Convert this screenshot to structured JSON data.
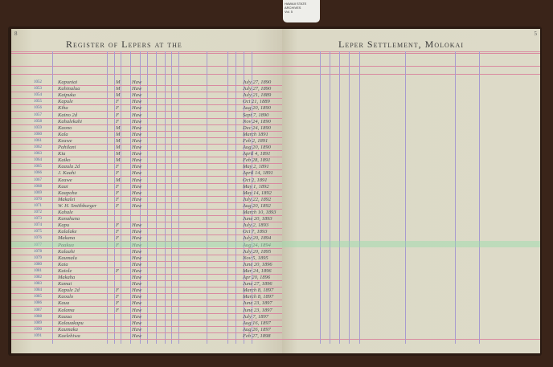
{
  "tag": {
    "lines": [
      "HAWAII STATE",
      "ARCHIVES",
      "Vol. 5"
    ]
  },
  "left_page": {
    "page_number": "8",
    "title": "Register of Lepers at the"
  },
  "right_page": {
    "page_number": "5",
    "title": "Leper Settlement, Molokai"
  },
  "colors": {
    "page": "#dcd9c6",
    "ruling_pink": "#d98aa0",
    "ruling_purple": "#a79bd0",
    "highlight": "#96dcaa"
  },
  "highlighted_row": 25,
  "rows": [
    {
      "num": "1052",
      "name": "Kapuniai",
      "sex": "M",
      "nat": "Haw",
      "date": "July 27, 1890"
    },
    {
      "num": "1053",
      "name": "Kahinalua",
      "sex": "M",
      "nat": "Haw",
      "date": "July 27, 1890"
    },
    {
      "num": "1054",
      "name": "Kaipuka",
      "sex": "M",
      "nat": "Haw",
      "date": "July 21, 1889"
    },
    {
      "num": "1055",
      "name": "Kapule",
      "sex": "F",
      "nat": "Haw",
      "date": "Oct 21, 1889"
    },
    {
      "num": "1056",
      "name": "Kiha",
      "sex": "F",
      "nat": "Haw",
      "date": "Aug 20, 1890"
    },
    {
      "num": "1057",
      "name": "Kaino 2d",
      "sex": "F",
      "nat": "Haw",
      "date": "Sept 7, 1890"
    },
    {
      "num": "1058",
      "name": "Kahalekahi",
      "sex": "F",
      "nat": "Haw",
      "date": "Nov 24, 1890"
    },
    {
      "num": "1059",
      "name": "Kaono",
      "sex": "M",
      "nat": "Haw",
      "date": "Dec 24, 1890"
    },
    {
      "num": "1060",
      "name": "Kala",
      "sex": "M",
      "nat": "Haw",
      "date": "March 1891"
    },
    {
      "num": "1061",
      "name": "Keawe",
      "sex": "M",
      "nat": "Haw",
      "date": "Feb 2, 1891"
    },
    {
      "num": "1062",
      "name": "Pahilani",
      "sex": "M",
      "nat": "Haw",
      "date": "Aug 20, 1890"
    },
    {
      "num": "1063",
      "name": "Kia",
      "sex": "M",
      "nat": "Haw",
      "date": "April 4, 1891"
    },
    {
      "num": "1064",
      "name": "Kaiko",
      "sex": "M",
      "nat": "Haw",
      "date": "Feb 28, 1891"
    },
    {
      "num": "1065",
      "name": "Kaaula 2d",
      "sex": "F",
      "nat": "Haw",
      "date": "May 2, 1891"
    },
    {
      "num": "1066",
      "name": "J. Kaahi",
      "sex": "F",
      "nat": "Haw",
      "date": "April 14, 1891"
    },
    {
      "num": "1067",
      "name": "Keawe",
      "sex": "M",
      "nat": "Haw",
      "date": "Oct 2, 1891"
    },
    {
      "num": "1068",
      "name": "Kaai",
      "sex": "F",
      "nat": "Haw",
      "date": "May 1, 1892"
    },
    {
      "num": "1069",
      "name": "Kaapoha",
      "sex": "F",
      "nat": "Haw",
      "date": "May 14, 1892"
    },
    {
      "num": "1070",
      "name": "Makalei",
      "sex": "F",
      "nat": "Haw",
      "date": "July 22, 1892"
    },
    {
      "num": "1071",
      "name": "W. H. Smithburger",
      "sex": "F",
      "nat": "Haw",
      "date": "Aug 20, 1892"
    },
    {
      "num": "1072",
      "name": "Kahale",
      "sex": "",
      "nat": "",
      "date": "March 10, 1893"
    },
    {
      "num": "1073",
      "name": "Kanahuna",
      "sex": "",
      "nat": "",
      "date": "June 20, 1893"
    },
    {
      "num": "1074",
      "name": "Kapu",
      "sex": "F",
      "nat": "Haw",
      "date": "July 2, 1893"
    },
    {
      "num": "1075",
      "name": "Kalalake",
      "sex": "F",
      "nat": "Haw",
      "date": "Oct 7, 1893"
    },
    {
      "num": "1076",
      "name": "Makana",
      "sex": "F",
      "nat": "Haw",
      "date": "July 20, 1894"
    },
    {
      "num": "1077",
      "name": "Paakua",
      "sex": "F",
      "nat": "Haw",
      "date": "Aug 24, 1894"
    },
    {
      "num": "1078",
      "name": "Kalaahi",
      "sex": "",
      "nat": "Haw",
      "date": "July 20, 1895"
    },
    {
      "num": "1079",
      "name": "Kaumalu",
      "sex": "",
      "nat": "Haw",
      "date": "Nov 5, 1895"
    },
    {
      "num": "1080",
      "name": "Kaia",
      "sex": "",
      "nat": "Haw",
      "date": "June 20, 1896"
    },
    {
      "num": "1081",
      "name": "Kaiole",
      "sex": "F",
      "nat": "Haw",
      "date": "Mar 24, 1896"
    },
    {
      "num": "1082",
      "name": "Makaha",
      "sex": "",
      "nat": "Haw",
      "date": "Apr 20, 1896"
    },
    {
      "num": "1083",
      "name": "Kamai",
      "sex": "",
      "nat": "Haw",
      "date": "June 27, 1896"
    },
    {
      "num": "1084",
      "name": "Kapule 2d",
      "sex": "F",
      "nat": "Haw",
      "date": "March 8, 1897"
    },
    {
      "num": "1085",
      "name": "Kaoulo",
      "sex": "F",
      "nat": "Haw",
      "date": "March 8, 1897"
    },
    {
      "num": "1086",
      "name": "Kaua",
      "sex": "F",
      "nat": "Haw",
      "date": "June 23, 1897"
    },
    {
      "num": "1087",
      "name": "Kalama",
      "sex": "F",
      "nat": "Haw",
      "date": "June 23, 1897"
    },
    {
      "num": "1088",
      "name": "Kaaua",
      "sex": "",
      "nat": "Haw",
      "date": "July 7, 1897"
    },
    {
      "num": "1089",
      "name": "Kalauakapu",
      "sex": "",
      "nat": "Haw",
      "date": "Aug 16, 1897"
    },
    {
      "num": "1090",
      "name": "Kaumaka",
      "sex": "",
      "nat": "Haw",
      "date": "Aug 26, 1897"
    },
    {
      "num": "1091",
      "name": "Kaelehiwa",
      "sex": "",
      "nat": "Haw",
      "date": "Feb 27, 1898"
    }
  ]
}
